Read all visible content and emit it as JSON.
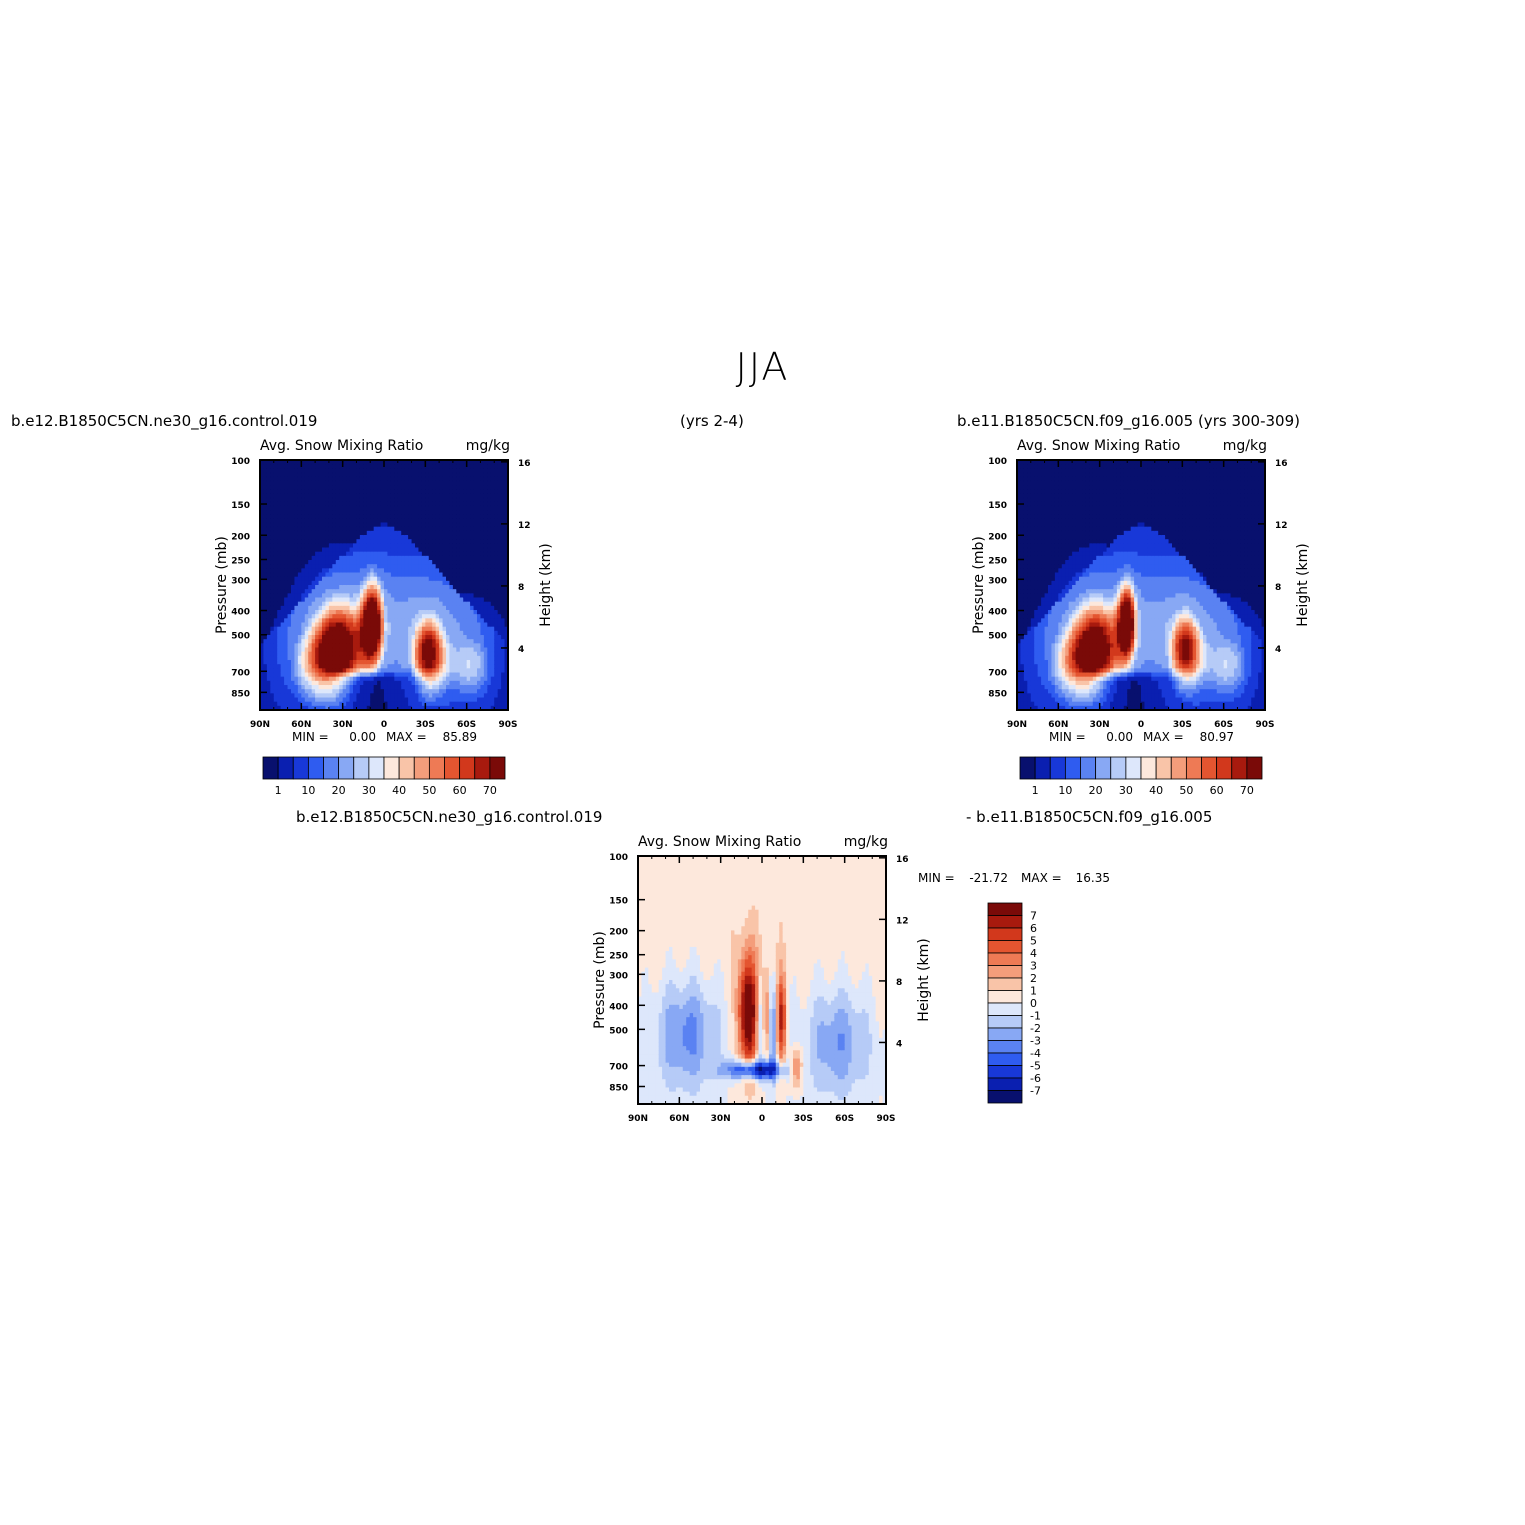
{
  "page": {
    "title": "JJA",
    "case_a": "b.e12.B1850C5CN.ne30_g16.control.019",
    "years_a": "(yrs 2-4)",
    "case_b": "b.e11.B1850C5CN.f09_g16.005 (yrs 300-309)",
    "diff_left": "b.e12.B1850C5CN.ne30_g16.control.019",
    "diff_right": "- b.e11.B1850C5CN.f09_g16.005"
  },
  "colors": {
    "abs_palette": [
      "#08106e",
      "#0a1fb0",
      "#1838d8",
      "#2f5cf0",
      "#5a82f2",
      "#88a8f4",
      "#b6cbf7",
      "#dde7fb",
      "#fde8dc",
      "#f9c4a8",
      "#f49d7b",
      "#ee7a55",
      "#e45530",
      "#d2381c",
      "#a81a0e",
      "#7a0a08"
    ],
    "diff_palette": [
      "#08106e",
      "#0a1fb0",
      "#1838d8",
      "#2f5cf0",
      "#5a82f2",
      "#88a8f4",
      "#b6cbf7",
      "#dde7fb",
      "#fde8dc",
      "#f9c4a8",
      "#f49d7b",
      "#ee7a55",
      "#e45530",
      "#d2381c",
      "#a81a0e",
      "#7a0a08"
    ]
  },
  "chart_data": [
    {
      "type": "heatmap",
      "title": "Avg. Snow Mixing Ratio",
      "units": "mg/kg",
      "ylabel": "Pressure (mb)",
      "ylabel_right": "Height (km)",
      "x_ticks": [
        "90N",
        "60N",
        "30N",
        "0",
        "30S",
        "60S",
        "90S"
      ],
      "y_ticks": [
        100,
        150,
        200,
        250,
        300,
        400,
        500,
        700,
        850
      ],
      "y_range": [
        100,
        1000
      ],
      "y_scale": "log",
      "height_ticks": [
        16,
        12,
        8,
        4
      ],
      "stats": {
        "min_label": "MIN =",
        "min": "0.00",
        "max_label": "MAX =",
        "max": "85.89"
      },
      "colorbar": {
        "orientation": "horizontal",
        "labels": [
          "1",
          "10",
          "20",
          "30",
          "40",
          "50",
          "60",
          "70"
        ]
      },
      "blobs": [
        {
          "lat": 32,
          "p": 560,
          "amp": 82,
          "w": 14,
          "h": 0.16
        },
        {
          "lat": 8,
          "p": 450,
          "amp": 86,
          "w": 6,
          "h": 0.14
        },
        {
          "lat": -32,
          "p": 590,
          "amp": 78,
          "w": 9,
          "h": 0.13
        },
        {
          "lat": 50,
          "p": 650,
          "amp": 30,
          "w": 14,
          "h": 0.12
        },
        {
          "lat": -62,
          "p": 650,
          "amp": 30,
          "w": 12,
          "h": 0.12
        }
      ]
    },
    {
      "type": "heatmap",
      "title": "Avg. Snow Mixing Ratio",
      "units": "mg/kg",
      "ylabel": "Pressure (mb)",
      "ylabel_right": "Height (km)",
      "x_ticks": [
        "90N",
        "60N",
        "30N",
        "0",
        "30S",
        "60S",
        "90S"
      ],
      "y_ticks": [
        100,
        150,
        200,
        250,
        300,
        400,
        500,
        700,
        850
      ],
      "y_range": [
        100,
        1000
      ],
      "y_scale": "log",
      "height_ticks": [
        16,
        12,
        8,
        4
      ],
      "stats": {
        "min_label": "MIN =",
        "min": "0.00",
        "max_label": "MAX =",
        "max": "80.97"
      },
      "colorbar": {
        "orientation": "horizontal",
        "labels": [
          "1",
          "10",
          "20",
          "30",
          "40",
          "50",
          "60",
          "70"
        ]
      },
      "blobs": [
        {
          "lat": 32,
          "p": 560,
          "amp": 78,
          "w": 14,
          "h": 0.16
        },
        {
          "lat": 10,
          "p": 440,
          "amp": 80,
          "w": 5,
          "h": 0.13
        },
        {
          "lat": -32,
          "p": 570,
          "amp": 74,
          "w": 9,
          "h": 0.13
        },
        {
          "lat": 50,
          "p": 650,
          "amp": 30,
          "w": 14,
          "h": 0.12
        },
        {
          "lat": -62,
          "p": 650,
          "amp": 30,
          "w": 12,
          "h": 0.12
        }
      ]
    },
    {
      "type": "heatmap",
      "title": "Avg. Snow Mixing Ratio",
      "units": "mg/kg",
      "ylabel": "Pressure (mb)",
      "ylabel_right": "Height (km)",
      "x_ticks": [
        "90N",
        "60N",
        "30N",
        "0",
        "30S",
        "60S",
        "90S"
      ],
      "y_ticks": [
        100,
        150,
        200,
        250,
        300,
        400,
        500,
        700,
        850
      ],
      "y_range": [
        100,
        1000
      ],
      "y_scale": "log",
      "height_ticks": [
        16,
        12,
        8,
        4
      ],
      "stats": {
        "min_label": "MIN =",
        "min": "-21.72",
        "max_label": "MAX =",
        "max": "16.35"
      },
      "colorbar": {
        "orientation": "vertical",
        "labels": [
          "7",
          "6",
          "5",
          "4",
          "3",
          "2",
          "1",
          "0",
          "-1",
          "-2",
          "-3",
          "-4",
          "-5",
          "-6",
          "-7"
        ]
      }
    }
  ]
}
